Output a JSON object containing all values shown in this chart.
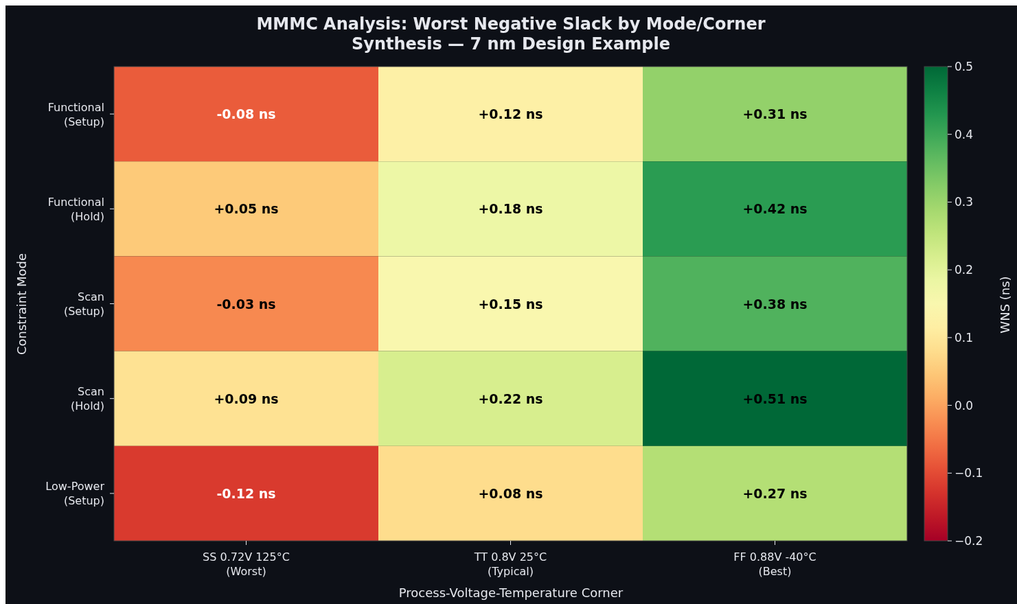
{
  "chart_data": {
    "type": "heatmap",
    "title": "MMMC Analysis: Worst Negative Slack by Mode/Corner\nSynthesis — 7 nm Design Example",
    "xlabel": "Process-Voltage-Temperature Corner",
    "ylabel": "Constraint Mode",
    "clabel": "WNS (ns)",
    "categories": [
      "SS 0.72V 125°C\n(Worst)",
      "TT 0.8V 25°C\n(Typical)",
      "FF 0.88V -40°C\n(Best)"
    ],
    "y_categories": [
      "Functional\n(Setup)",
      "Functional\n(Hold)",
      "Scan\n(Setup)",
      "Scan\n(Hold)",
      "Low-Power\n(Setup)"
    ],
    "cells": [
      [
        -0.08,
        0.12,
        0.31
      ],
      [
        0.05,
        0.18,
        0.42
      ],
      [
        -0.03,
        0.15,
        0.38
      ],
      [
        0.09,
        0.22,
        0.51
      ],
      [
        -0.12,
        0.08,
        0.27
      ]
    ],
    "cell_labels": [
      [
        "-0.08 ns",
        "+0.12 ns",
        "+0.31 ns"
      ],
      [
        "+0.05 ns",
        "+0.18 ns",
        "+0.42 ns"
      ],
      [
        "-0.03 ns",
        "+0.15 ns",
        "+0.38 ns"
      ],
      [
        "+0.09 ns",
        "+0.22 ns",
        "+0.51 ns"
      ],
      [
        "-0.12 ns",
        "+0.08 ns",
        "+0.27 ns"
      ]
    ],
    "clim": [
      -0.2,
      0.5
    ],
    "cticks": [
      {
        "value": -0.2,
        "label": "−0.2"
      },
      {
        "value": -0.1,
        "label": "−0.1"
      },
      {
        "value": 0,
        "label": "0.0"
      },
      {
        "value": 0.1,
        "label": "0.1"
      },
      {
        "value": 0.2,
        "label": "0.2"
      },
      {
        "value": 0.3,
        "label": "0.3"
      },
      {
        "value": 0.4,
        "label": "0.4"
      },
      {
        "value": 0.5,
        "label": "0.5"
      }
    ]
  }
}
